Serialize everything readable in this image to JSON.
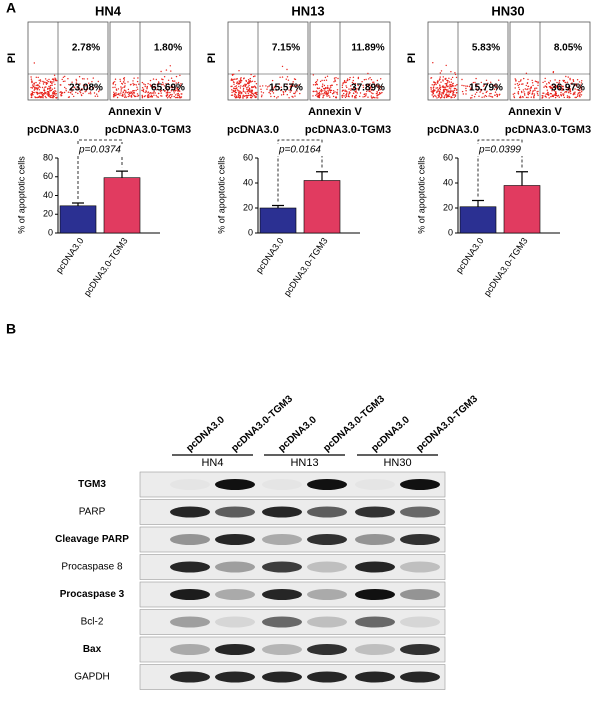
{
  "panel_a": {
    "label": "A",
    "groups": [
      {
        "title": "HN4",
        "y_label": "PI",
        "x_label": "Annexin V",
        "plots": [
          {
            "name": "pcDNA3.0",
            "upper_right": "2.78%",
            "lower_right": "23.08%"
          },
          {
            "name": "pcDNA3.0-TGM3",
            "upper_right": "1.80%",
            "lower_right": "65.69%"
          }
        ]
      },
      {
        "title": "HN13",
        "y_label": "PI",
        "x_label": "Annexin V",
        "plots": [
          {
            "name": "pcDNA3.0",
            "upper_right": "7.15%",
            "lower_right": "15.57%"
          },
          {
            "name": "pcDNA3.0-TGM3",
            "upper_right": "11.89%",
            "lower_right": "37.89%"
          }
        ]
      },
      {
        "title": "HN30",
        "y_label": "PI",
        "x_label": "Annexin V",
        "plots": [
          {
            "name": "pcDNA3.0",
            "upper_right": "5.83%",
            "lower_right": "15.79%"
          },
          {
            "name": "pcDNA3.0-TGM3",
            "upper_right": "8.05%",
            "lower_right": "36.97%"
          }
        ]
      }
    ]
  },
  "chart_data": [
    {
      "type": "bar",
      "y_label": "% of apoptotic cells",
      "categories": [
        "pcDNA3.0",
        "pcDNA3.0-TGM3"
      ],
      "values": [
        29,
        59
      ],
      "errors": [
        3,
        7
      ],
      "colors": [
        "#2b3092",
        "#e13b60"
      ],
      "ylim": [
        0,
        80
      ],
      "yticks": [
        0,
        20,
        40,
        60,
        80
      ],
      "annotation": "p=0.0374"
    },
    {
      "type": "bar",
      "y_label": "% of apoptotic cells",
      "categories": [
        "pcDNA3.0",
        "pcDNA3.0-TGM3"
      ],
      "values": [
        20,
        42
      ],
      "errors": [
        2,
        7
      ],
      "colors": [
        "#2b3092",
        "#e13b60"
      ],
      "ylim": [
        0,
        60
      ],
      "yticks": [
        0,
        20,
        40,
        60
      ],
      "annotation": "p=0.0164"
    },
    {
      "type": "bar",
      "y_label": "% of apoptotic cells",
      "categories": [
        "pcDNA3.0",
        "pcDNA3.0-TGM3"
      ],
      "values": [
        21,
        38
      ],
      "errors": [
        5,
        11
      ],
      "colors": [
        "#2b3092",
        "#e13b60"
      ],
      "ylim": [
        0,
        60
      ],
      "yticks": [
        0,
        20,
        40,
        60
      ],
      "annotation": "p=0.0399"
    }
  ],
  "panel_b": {
    "label": "B",
    "groups": [
      "HN4",
      "HN13",
      "HN30"
    ],
    "lanes": [
      "pcDNA3.0",
      "pcDNA3.0-TGM3",
      "pcDNA3.0",
      "pcDNA3.0-TGM3",
      "pcDNA3.0",
      "pcDNA3.0-TGM3"
    ],
    "rows": [
      "TGM3",
      "PARP",
      "Cleavage PARP",
      "Procaspase 8",
      "Procaspase 3",
      "Bcl-2",
      "Bax",
      "GAPDH"
    ]
  }
}
